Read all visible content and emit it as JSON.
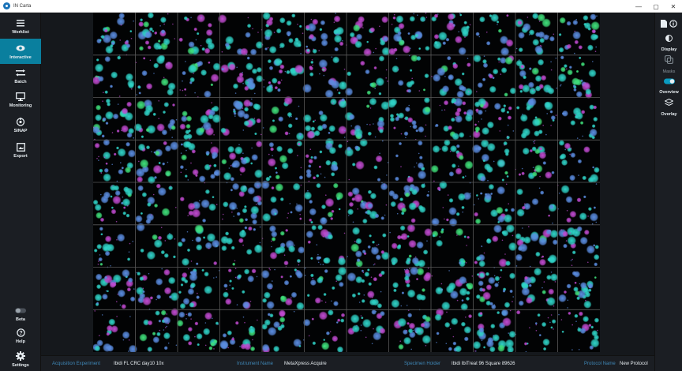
{
  "window": {
    "title": "IN Carta",
    "minimize_glyph": "—",
    "maximize_glyph": "▢",
    "close_glyph": "✕"
  },
  "left_nav": {
    "items": [
      {
        "label": "Worklist",
        "icon": "list-icon",
        "active": false
      },
      {
        "label": "Interactive",
        "icon": "eye-icon",
        "active": true
      },
      {
        "label": "Batch",
        "icon": "batch-icon",
        "active": false
      },
      {
        "label": "Monitoring",
        "icon": "monitor-icon",
        "active": false
      },
      {
        "label": "SINAP",
        "icon": "sinap-icon",
        "active": false
      },
      {
        "label": "Export",
        "icon": "export-icon",
        "active": false
      }
    ],
    "bottom_items": [
      {
        "label": "Beta",
        "icon": "toggle-icon"
      },
      {
        "label": "Help",
        "icon": "help-icon"
      },
      {
        "label": "Settings",
        "icon": "gear-icon"
      }
    ]
  },
  "right_panel": {
    "items": [
      {
        "label": "Display",
        "icon": "contrast-icon"
      },
      {
        "label": "Masks",
        "icon": "masks-icon"
      },
      {
        "label": "Overview",
        "icon": "overview-icon"
      },
      {
        "label": "Overlay",
        "icon": "layers-icon"
      }
    ]
  },
  "status_bar": {
    "acquisition_experiment_label": "Acquisition Experiment",
    "acquisition_experiment_value": "Ibidi FL CRC day10 10x",
    "instrument_name_label": "Instrument Name",
    "instrument_name_value": "MetaXpress Acquire",
    "specimen_holder_label": "Specimen Holder",
    "specimen_holder_value": "Ibidi IbiTreat 96 Square 89626",
    "protocol_name_label": "Protocol Name",
    "protocol_name_value": "New Protocol"
  },
  "plate": {
    "rows": 8,
    "columns": 12,
    "colors": {
      "cyan": "#2fd3c7",
      "blue": "#5a8ce0",
      "magenta": "#c04ad0",
      "green": "#3fe07a",
      "grid_line": "#5a5a5a"
    }
  }
}
